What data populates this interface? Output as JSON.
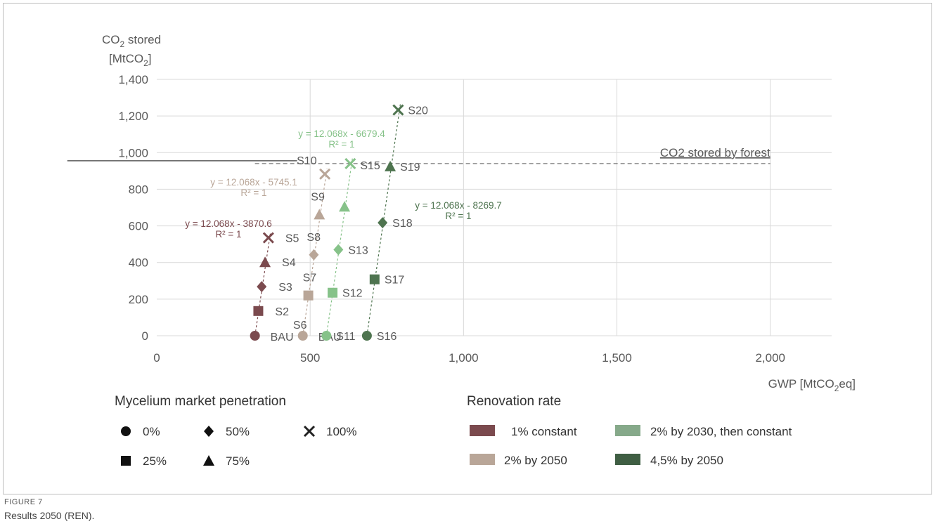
{
  "chart_data": {
    "type": "scatter",
    "ylabel_line1": "CO",
    "ylabel_sub": "2",
    "ylabel_line1_tail": " stored",
    "ylabel_line2_pre": "[MtCO",
    "ylabel_line2_sub": "2",
    "ylabel_line2_tail": "]",
    "xlabel_pre": "GWP [MtCO",
    "xlabel_sub": "2",
    "xlabel_tail": "eq]",
    "xlim": [
      0,
      2200
    ],
    "ylim": [
      0,
      1400
    ],
    "x_ticks": [
      0,
      500,
      1000,
      1500,
      2000
    ],
    "x_tick_labels": [
      "0",
      "500",
      "1,000",
      "1,500",
      "2,000"
    ],
    "y_ticks": [
      0,
      200,
      400,
      600,
      800,
      1000,
      1200,
      1400
    ],
    "y_tick_labels": [
      "0",
      "200",
      "400",
      "600",
      "800",
      "1,000",
      "1,200",
      "1,400"
    ],
    "grid": "vertical and horizontal",
    "reference_line": {
      "label": "CO2 stored by forest",
      "y": 940,
      "x_start": 320,
      "x_end": 2000
    },
    "series": [
      {
        "name": "1% constant",
        "color": "#7b4a4e",
        "points": [
          {
            "label": "BAU",
            "x": 320,
            "y": 0,
            "marker": "circle"
          },
          {
            "label": "S2",
            "x": 331,
            "y": 135,
            "marker": "square"
          },
          {
            "label": "S3",
            "x": 342,
            "y": 268,
            "marker": "diamond"
          },
          {
            "label": "S4",
            "x": 353,
            "y": 402,
            "marker": "triangle"
          },
          {
            "label": "S5",
            "x": 364,
            "y": 535,
            "marker": "x"
          }
        ],
        "trendline": {
          "equation": "y = 12.068x - 3870.6",
          "r2": "R² = 1"
        }
      },
      {
        "name": "2% by 2050",
        "color": "#b9a698",
        "points": [
          {
            "label": "BAU",
            "x": 476,
            "y": 0,
            "marker": "circle"
          },
          {
            "label": "S7",
            "x": 494,
            "y": 220,
            "marker": "square"
          },
          {
            "label": "S8",
            "x": 512,
            "y": 442,
            "marker": "diamond"
          },
          {
            "label": "S9",
            "x": 530,
            "y": 662,
            "marker": "triangle"
          },
          {
            "label": "S10",
            "x": 548,
            "y": 883,
            "marker": "x"
          }
        ],
        "trendline": {
          "equation": "y = 12.068x - 5745.1",
          "r2": "R² = 1"
        }
      },
      {
        "name": "2% by 2030, then constant",
        "color": "#86c289",
        "points": [
          {
            "label": "S11",
            "x": 553,
            "y": 0,
            "marker": "circle"
          },
          {
            "label": "S12",
            "x": 573,
            "y": 235,
            "marker": "square"
          },
          {
            "label": "S13",
            "x": 592,
            "y": 470,
            "marker": "diamond"
          },
          {
            "label": "",
            "x": 612,
            "y": 705,
            "marker": "triangle"
          },
          {
            "label": "S15",
            "x": 631,
            "y": 940,
            "marker": "x"
          }
        ],
        "trendline": {
          "equation": "y = 12.068x - 6679.4",
          "r2": "R² = 1"
        }
      },
      {
        "name": "4,5% by 2050",
        "color": "#4e744f",
        "points": [
          {
            "label": "S16",
            "x": 685,
            "y": 0,
            "marker": "circle"
          },
          {
            "label": "S17",
            "x": 710,
            "y": 308,
            "marker": "square"
          },
          {
            "label": "S18",
            "x": 736,
            "y": 617,
            "marker": "diamond"
          },
          {
            "label": "S19",
            "x": 761,
            "y": 925,
            "marker": "triangle"
          },
          {
            "label": "S20",
            "x": 787,
            "y": 1233,
            "marker": "x"
          }
        ],
        "trendline": {
          "equation": "y = 12.068x - 8269.7",
          "r2": "R² = 1"
        }
      }
    ],
    "extra_labels": [
      {
        "label": "S6",
        "x": 476,
        "y": 0
      }
    ],
    "legend_marker": {
      "title": "Mycelium market penetration",
      "items": [
        {
          "marker": "circle",
          "label": "0%"
        },
        {
          "marker": "diamond",
          "label": "50%"
        },
        {
          "marker": "x",
          "label": "100%"
        },
        {
          "marker": "square",
          "label": "25%"
        },
        {
          "marker": "triangle",
          "label": "75%"
        }
      ]
    },
    "legend_color": {
      "title": "Renovation rate",
      "items": [
        {
          "label": "1% constant",
          "color": "#7b4a4e"
        },
        {
          "label": "2% by 2030, then constant",
          "color": "#86a98a"
        },
        {
          "label": "2% by 2050",
          "color": "#b9a698"
        },
        {
          "label": "4,5% by 2050",
          "color": "#3f5e43"
        }
      ]
    }
  },
  "caption": {
    "label": "FIGURE 7",
    "text": "Results 2050 (REN)."
  }
}
